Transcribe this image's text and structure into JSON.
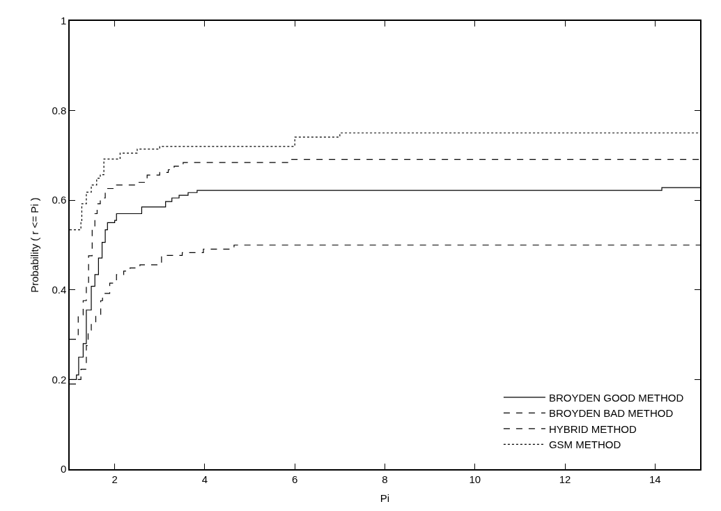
{
  "chart_data": {
    "type": "step",
    "xlabel": "Pi",
    "ylabel": "Probability ( r <= Pi )",
    "xlim": [
      1,
      15
    ],
    "ylim": [
      0,
      1
    ],
    "xticks": [
      2,
      4,
      6,
      8,
      10,
      12,
      14
    ],
    "yticks": [
      0,
      0.2,
      0.4,
      0.6,
      0.8,
      1
    ],
    "legend": "bottom right",
    "marker": "none",
    "series": [
      {
        "name": "BROYDEN GOOD METHOD",
        "color": "#000000",
        "line_style": "solid",
        "x": [
          1,
          1.15,
          1.2,
          1.3,
          1.37,
          1.48,
          1.56,
          1.64,
          1.72,
          1.79,
          1.84,
          2.0,
          2.04,
          2.6,
          3.13,
          3.27,
          3.43,
          3.63,
          3.83,
          14.15,
          15
        ],
        "values": [
          0.2,
          0.21,
          0.25,
          0.28,
          0.355,
          0.408,
          0.434,
          0.471,
          0.506,
          0.534,
          0.55,
          0.555,
          0.57,
          0.585,
          0.597,
          0.605,
          0.611,
          0.617,
          0.622,
          0.628,
          0.628
        ]
      },
      {
        "name": "BROYDEN BAD METHOD",
        "color": "#000000",
        "line_style": "dashed",
        "x": [
          1,
          1.19,
          1.25,
          1.37,
          1.41,
          1.48,
          1.58,
          1.69,
          1.73,
          1.89,
          2.04,
          2.2,
          2.34,
          2.56,
          3.04,
          3.5,
          3.97,
          4.65,
          15
        ],
        "values": [
          0.19,
          0.2,
          0.223,
          0.276,
          0.31,
          0.325,
          0.344,
          0.376,
          0.392,
          0.415,
          0.434,
          0.442,
          0.449,
          0.456,
          0.477,
          0.483,
          0.491,
          0.5,
          0.5
        ]
      },
      {
        "name": "HYBRID METHOD",
        "color": "#000000",
        "line_style": "dashed",
        "x": [
          1,
          1.19,
          1.3,
          1.37,
          1.42,
          1.5,
          1.56,
          1.61,
          1.68,
          1.79,
          2.04,
          2.46,
          2.72,
          3.0,
          3.19,
          3.32,
          3.52,
          5.91,
          15
        ],
        "values": [
          0.29,
          0.344,
          0.376,
          0.412,
          0.476,
          0.534,
          0.57,
          0.592,
          0.605,
          0.626,
          0.634,
          0.64,
          0.656,
          0.662,
          0.668,
          0.676,
          0.684,
          0.691,
          0.691
        ]
      },
      {
        "name": "GSM METHOD",
        "color": "#000000",
        "line_style": "dotted",
        "x": [
          1,
          1.25,
          1.27,
          1.37,
          1.48,
          1.6,
          1.68,
          1.76,
          2.12,
          2.5,
          3.0,
          6.0,
          7.0,
          15
        ],
        "values": [
          0.534,
          0.55,
          0.592,
          0.618,
          0.634,
          0.649,
          0.657,
          0.692,
          0.705,
          0.714,
          0.72,
          0.741,
          0.75,
          0.75
        ]
      }
    ]
  }
}
